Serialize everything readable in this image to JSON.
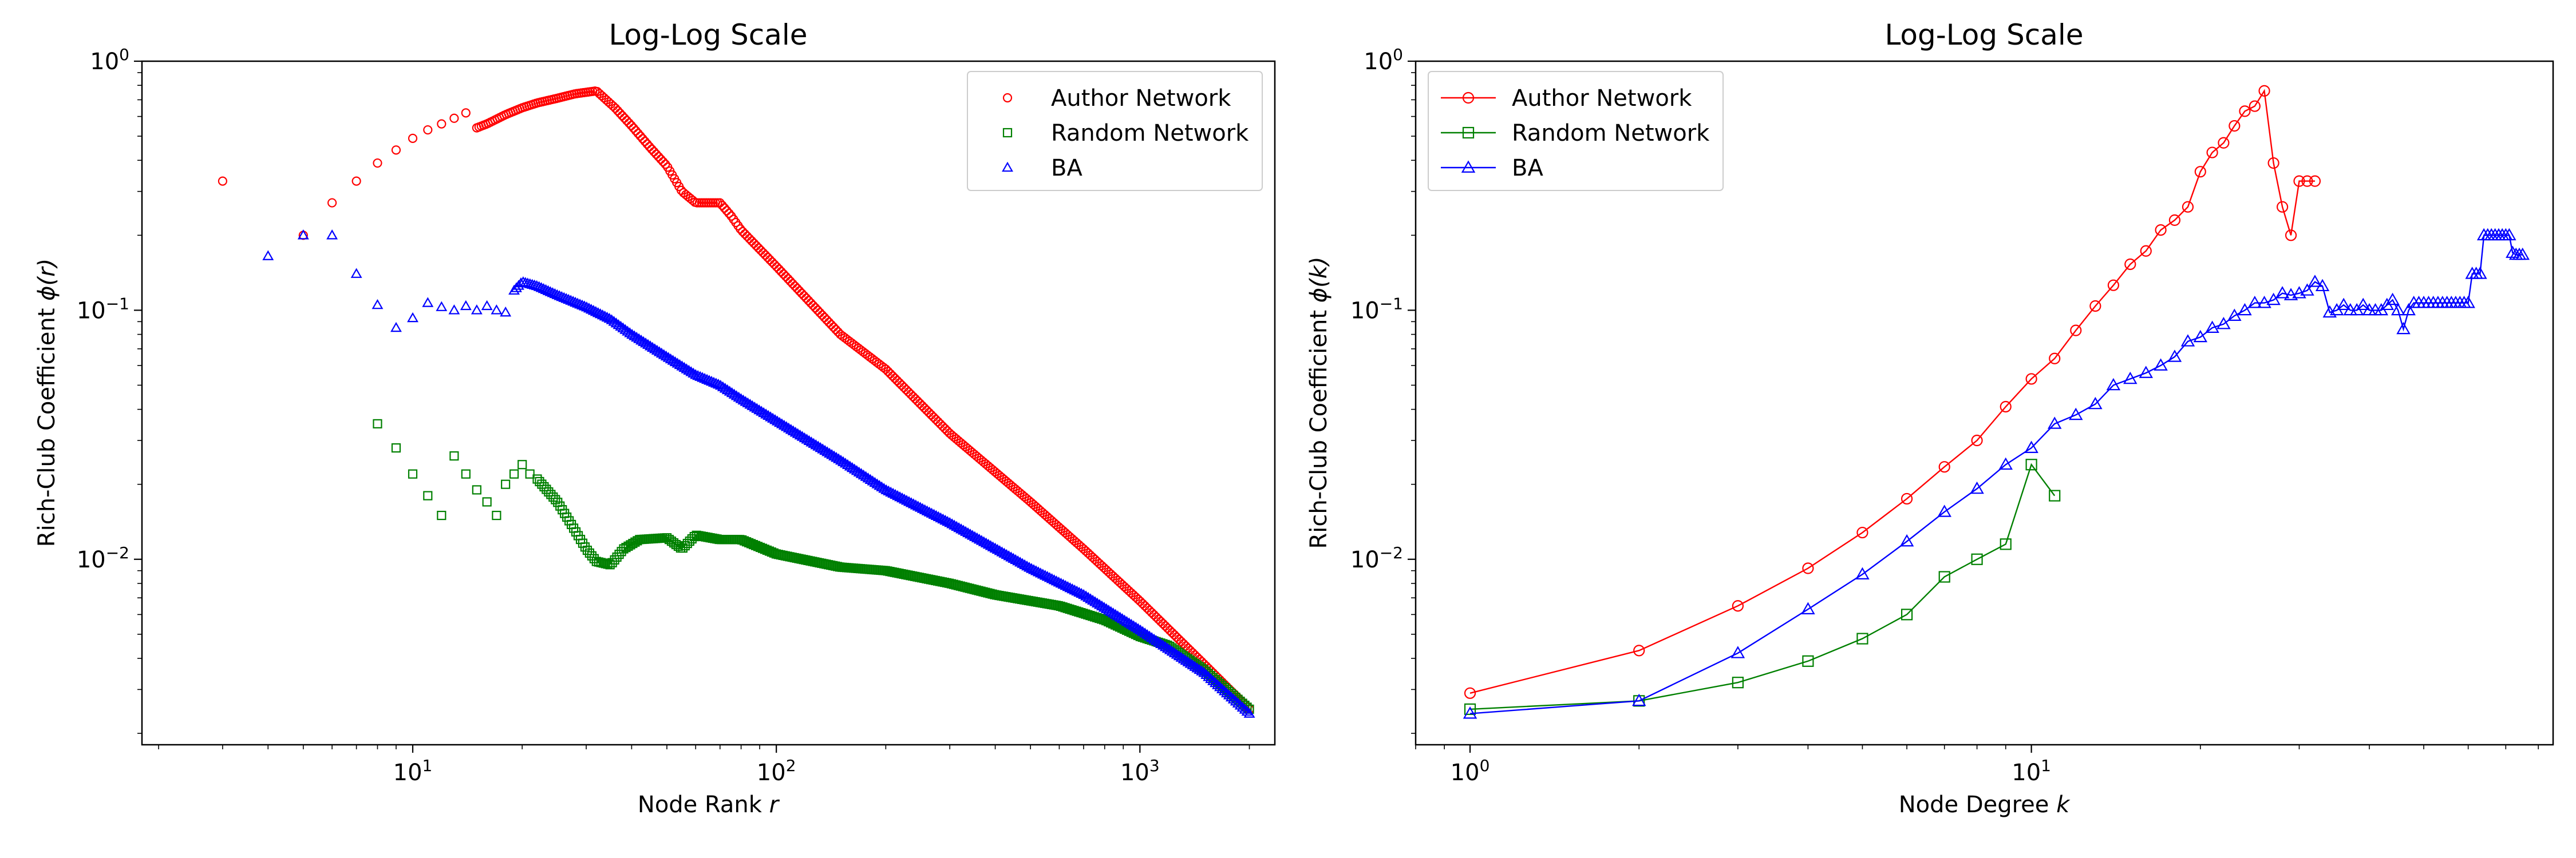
{
  "figure": {
    "background": "#ffffff"
  },
  "chart_data": [
    {
      "type": "scatter",
      "title": "Log-Log Scale",
      "xlabel": "Node Rank r",
      "ylabel": "Rich-Club Coefficient ϕ(r)",
      "xscale": "log",
      "yscale": "log",
      "xlim": [
        1.8,
        2350
      ],
      "ylim": [
        0.0018,
        1.0
      ],
      "x_ticks": [
        {
          "base": "10",
          "exp": "1",
          "value": 10
        },
        {
          "base": "10",
          "exp": "2",
          "value": 100
        },
        {
          "base": "10",
          "exp": "3",
          "value": 1000
        }
      ],
      "y_ticks": [
        {
          "base": "10",
          "exp": "−2",
          "value": 0.01
        },
        {
          "base": "10",
          "exp": "−1",
          "value": 0.1
        },
        {
          "base": "10",
          "exp": "0",
          "value": 1
        }
      ],
      "legend": {
        "position": "top-right"
      },
      "grid": false,
      "series": [
        {
          "name": "Author Network",
          "color": "#ff0000",
          "marker": "circle",
          "anchors": [
            [
              3,
              0.33
            ],
            [
              5,
              0.2
            ],
            [
              6,
              0.27
            ],
            [
              7,
              0.33
            ],
            [
              8,
              0.39
            ],
            [
              9,
              0.44
            ],
            [
              10,
              0.49
            ],
            [
              11,
              0.53
            ],
            [
              12,
              0.56
            ],
            [
              13,
              0.59
            ],
            [
              14,
              0.62
            ],
            [
              15,
              0.54
            ],
            [
              16,
              0.56
            ],
            [
              18,
              0.61
            ],
            [
              20,
              0.65
            ],
            [
              22,
              0.68
            ],
            [
              25,
              0.71
            ],
            [
              28,
              0.74
            ],
            [
              32,
              0.76
            ],
            [
              36,
              0.65
            ],
            [
              40,
              0.55
            ],
            [
              45,
              0.45
            ],
            [
              50,
              0.38
            ],
            [
              55,
              0.3
            ],
            [
              60,
              0.27
            ],
            [
              70,
              0.27
            ],
            [
              75,
              0.24
            ],
            [
              80,
              0.21
            ],
            [
              100,
              0.15
            ],
            [
              150,
              0.08
            ],
            [
              200,
              0.058
            ],
            [
              300,
              0.032
            ],
            [
              500,
              0.017
            ],
            [
              700,
              0.011
            ],
            [
              1000,
              0.0068
            ],
            [
              1500,
              0.0038
            ],
            [
              2000,
              0.0025
            ]
          ],
          "dense_from_rank": 15,
          "dense_points_per_decade": 160
        },
        {
          "name": "Random Network",
          "color": "#008000",
          "marker": "square",
          "anchors": [
            [
              8,
              0.035
            ],
            [
              9,
              0.028
            ],
            [
              10,
              0.022
            ],
            [
              11,
              0.018
            ],
            [
              12,
              0.015
            ],
            [
              13,
              0.026
            ],
            [
              14,
              0.022
            ],
            [
              15,
              0.019
            ],
            [
              16,
              0.017
            ],
            [
              17,
              0.015
            ],
            [
              18,
              0.02
            ],
            [
              19,
              0.022
            ],
            [
              20,
              0.024
            ],
            [
              21,
              0.022
            ],
            [
              22,
              0.021
            ],
            [
              25,
              0.017
            ],
            [
              28,
              0.013
            ],
            [
              30,
              0.011
            ],
            [
              32,
              0.0098
            ],
            [
              35,
              0.0095
            ],
            [
              38,
              0.011
            ],
            [
              42,
              0.012
            ],
            [
              50,
              0.0122
            ],
            [
              55,
              0.011
            ],
            [
              60,
              0.0125
            ],
            [
              70,
              0.012
            ],
            [
              80,
              0.012
            ],
            [
              100,
              0.0105
            ],
            [
              150,
              0.0093
            ],
            [
              200,
              0.009
            ],
            [
              300,
              0.008
            ],
            [
              400,
              0.0072
            ],
            [
              600,
              0.0065
            ],
            [
              800,
              0.0057
            ],
            [
              1000,
              0.0049
            ],
            [
              1200,
              0.0045
            ],
            [
              1500,
              0.0036
            ],
            [
              2000,
              0.0025
            ]
          ],
          "dense_from_rank": 22,
          "dense_points_per_decade": 160
        },
        {
          "name": "BA",
          "color": "#0000ff",
          "marker": "triangle",
          "anchors": [
            [
              4,
              0.165
            ],
            [
              5,
              0.2
            ],
            [
              6,
              0.2
            ],
            [
              7,
              0.14
            ],
            [
              8,
              0.105
            ],
            [
              9,
              0.085
            ],
            [
              10,
              0.093
            ],
            [
              11,
              0.107
            ],
            [
              12,
              0.103
            ],
            [
              13,
              0.1
            ],
            [
              14,
              0.104
            ],
            [
              15,
              0.1
            ],
            [
              16,
              0.104
            ],
            [
              17,
              0.1
            ],
            [
              18,
              0.098
            ],
            [
              19,
              0.12
            ],
            [
              20,
              0.13
            ],
            [
              22,
              0.125
            ],
            [
              25,
              0.115
            ],
            [
              30,
              0.103
            ],
            [
              35,
              0.092
            ],
            [
              40,
              0.08
            ],
            [
              50,
              0.065
            ],
            [
              60,
              0.055
            ],
            [
              70,
              0.05
            ],
            [
              80,
              0.044
            ],
            [
              100,
              0.036
            ],
            [
              150,
              0.025
            ],
            [
              200,
              0.019
            ],
            [
              300,
              0.014
            ],
            [
              500,
              0.0092
            ],
            [
              700,
              0.0072
            ],
            [
              1000,
              0.0052
            ],
            [
              1500,
              0.0035
            ],
            [
              2000,
              0.0024
            ]
          ],
          "dense_from_rank": 19,
          "dense_points_per_decade": 160
        }
      ]
    },
    {
      "type": "line",
      "title": "Log-Log Scale",
      "xlabel": "Node Degree k",
      "ylabel": "Rich-Club Coefficient ϕ(k)",
      "xscale": "log",
      "yscale": "log",
      "xlim": [
        0.8,
        85
      ],
      "ylim": [
        0.0018,
        1.0
      ],
      "x_ticks": [
        {
          "base": "10",
          "exp": "0",
          "value": 1
        },
        {
          "base": "10",
          "exp": "1",
          "value": 10
        }
      ],
      "y_ticks": [
        {
          "base": "10",
          "exp": "−2",
          "value": 0.01
        },
        {
          "base": "10",
          "exp": "−1",
          "value": 0.1
        },
        {
          "base": "10",
          "exp": "0",
          "value": 1
        }
      ],
      "legend": {
        "position": "top-left"
      },
      "grid": false,
      "series": [
        {
          "name": "Author Network",
          "color": "#ff0000",
          "marker": "circle",
          "x": [
            1,
            2,
            3,
            4,
            5,
            6,
            7,
            8,
            9,
            10,
            11,
            12,
            13,
            14,
            15,
            16,
            17,
            18,
            19,
            20,
            21,
            22,
            23,
            24,
            25,
            26,
            27,
            28,
            29,
            30,
            31,
            32
          ],
          "y": [
            0.0029,
            0.0043,
            0.0065,
            0.0092,
            0.0128,
            0.0175,
            0.0235,
            0.03,
            0.041,
            0.053,
            0.064,
            0.083,
            0.104,
            0.126,
            0.153,
            0.173,
            0.21,
            0.23,
            0.26,
            0.36,
            0.43,
            0.47,
            0.55,
            0.63,
            0.66,
            0.76,
            0.39,
            0.26,
            0.2,
            0.33,
            0.33,
            0.33
          ]
        },
        {
          "name": "Random Network",
          "color": "#008000",
          "marker": "square",
          "x": [
            1,
            2,
            3,
            4,
            5,
            6,
            7,
            8,
            9,
            10,
            11
          ],
          "y": [
            0.0025,
            0.0027,
            0.0032,
            0.0039,
            0.0048,
            0.006,
            0.0085,
            0.01,
            0.0115,
            0.024,
            0.018
          ]
        },
        {
          "name": "BA",
          "color": "#0000ff",
          "marker": "triangle",
          "x": [
            1,
            2,
            3,
            4,
            5,
            6,
            7,
            8,
            9,
            10,
            11,
            12,
            13,
            14,
            15,
            16,
            17,
            18,
            19,
            20,
            21,
            22,
            23,
            24,
            25,
            26,
            27,
            28,
            29,
            30,
            31,
            32,
            33,
            34,
            35,
            36,
            37,
            38,
            39,
            40,
            41,
            42,
            43,
            44,
            45,
            46,
            47,
            48,
            49,
            50,
            51,
            52,
            53,
            54,
            55,
            56,
            57,
            58,
            59,
            60,
            61,
            62,
            63,
            64,
            65,
            66,
            67,
            68,
            69,
            70,
            71,
            72,
            73,
            74,
            75
          ],
          "y": [
            0.0024,
            0.0027,
            0.0042,
            0.0063,
            0.0087,
            0.0118,
            0.0155,
            0.0192,
            0.024,
            0.028,
            0.035,
            0.038,
            0.042,
            0.05,
            0.053,
            0.056,
            0.06,
            0.065,
            0.075,
            0.078,
            0.085,
            0.088,
            0.095,
            0.1,
            0.107,
            0.107,
            0.11,
            0.117,
            0.115,
            0.117,
            0.12,
            0.13,
            0.125,
            0.098,
            0.1,
            0.105,
            0.1,
            0.1,
            0.105,
            0.1,
            0.1,
            0.1,
            0.105,
            0.11,
            0.1,
            0.084,
            0.1,
            0.107,
            0.107,
            0.107,
            0.107,
            0.107,
            0.107,
            0.107,
            0.107,
            0.107,
            0.107,
            0.107,
            0.107,
            0.107,
            0.14,
            0.14,
            0.14,
            0.2,
            0.2,
            0.2,
            0.2,
            0.2,
            0.2,
            0.2,
            0.2,
            0.17,
            0.167,
            0.167,
            0.167
          ]
        }
      ]
    }
  ]
}
